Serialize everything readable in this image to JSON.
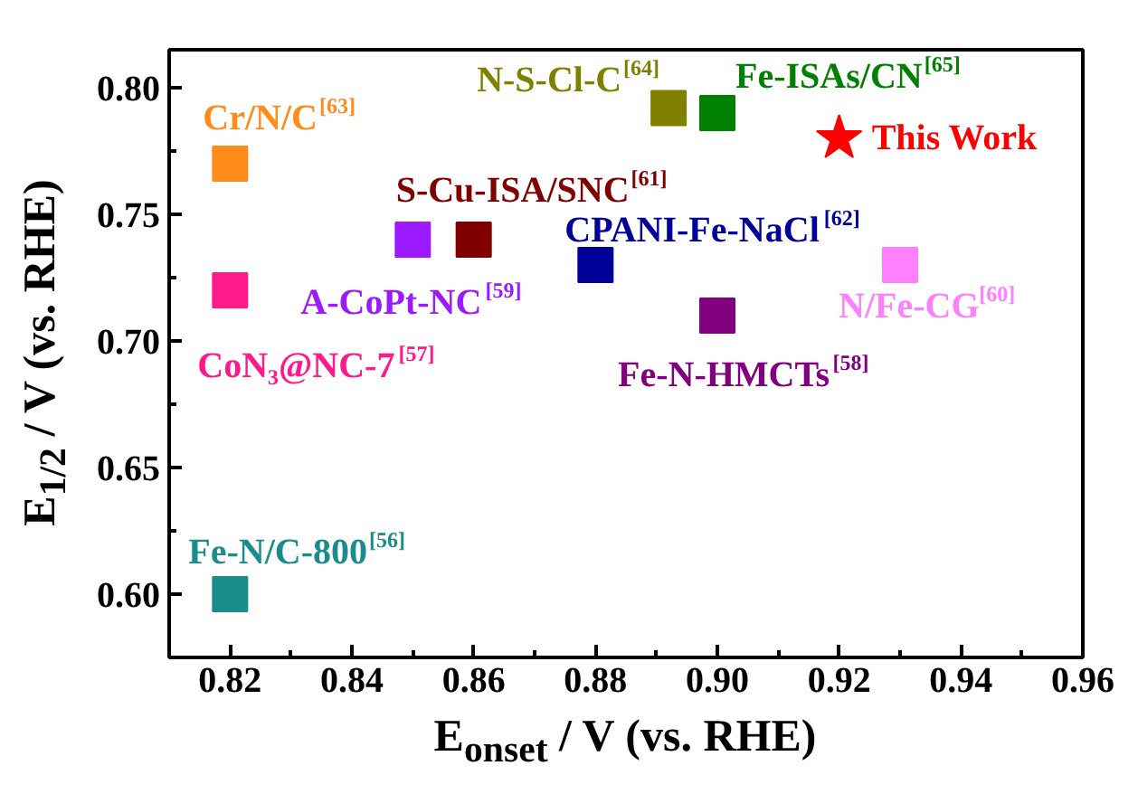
{
  "chart_data": {
    "type": "scatter",
    "xlabel": "E$_{onset}$ / V (vs. RHE)",
    "ylabel": "E$_{1/2}$ / V (vs. RHE)",
    "xlim": [
      0.81,
      0.96
    ],
    "ylim": [
      0.575,
      0.815
    ],
    "xticks": [
      {
        "value": 0.82,
        "label": "0.82"
      },
      {
        "value": 0.84,
        "label": "0.84"
      },
      {
        "value": 0.86,
        "label": "0.86"
      },
      {
        "value": 0.88,
        "label": "0.88"
      },
      {
        "value": 0.9,
        "label": "0.90"
      },
      {
        "value": 0.92,
        "label": "0.92"
      },
      {
        "value": 0.94,
        "label": "0.94"
      },
      {
        "value": 0.96,
        "label": "0.96"
      }
    ],
    "yticks": [
      {
        "value": 0.6,
        "label": "0.60"
      },
      {
        "value": 0.65,
        "label": "0.65"
      },
      {
        "value": 0.7,
        "label": "0.70"
      },
      {
        "value": 0.75,
        "label": "0.75"
      },
      {
        "value": 0.8,
        "label": "0.80"
      }
    ],
    "grid": false,
    "marker": "square",
    "series": [
      {
        "name": "Cr/N/C$^{[63]}$",
        "color": "#ff8c1a",
        "x": [
          0.82
        ],
        "values": [
          0.77
        ]
      },
      {
        "name": "CoN₃@NC-7$^{[57]}$",
        "color": "#ff1a8c",
        "x": [
          0.82
        ],
        "values": [
          0.72
        ]
      },
      {
        "name": "Fe-N/C-800$^{[56]}$",
        "color": "#1a8c8c",
        "x": [
          0.82
        ],
        "values": [
          0.6
        ]
      },
      {
        "name": "A-CoPt-NC$^{[59]}$",
        "color": "#9b1aff",
        "x": [
          0.85
        ],
        "values": [
          0.74
        ]
      },
      {
        "name": "S-Cu-ISA/SNC$^{[61]}$",
        "color": "#800000",
        "x": [
          0.86
        ],
        "values": [
          0.74
        ]
      },
      {
        "name": "CPANI-Fe-NaCl$^{[62]}$",
        "color": "#000099",
        "x": [
          0.88
        ],
        "values": [
          0.73
        ]
      },
      {
        "name": "N-S-Cl-C$^{[64]}$",
        "color": "#808000",
        "x": [
          0.892
        ],
        "values": [
          0.792
        ]
      },
      {
        "name": "Fe-ISAs/CN$^{[65]}$",
        "color": "#008000",
        "x": [
          0.9
        ],
        "values": [
          0.79
        ]
      },
      {
        "name": "This Work",
        "color": "#ff0000",
        "x": [
          0.92
        ],
        "values": [
          0.78
        ],
        "marker": "star"
      },
      {
        "name": "N/Fe-CG$^{[60]}$",
        "color": "#ff80ff",
        "x": [
          0.93
        ],
        "values": [
          0.73
        ]
      },
      {
        "name": "Fe-N-HMCTs$^{[58]}$",
        "color": "#800080",
        "x": [
          0.9
        ],
        "values": [
          0.71
        ]
      }
    ]
  }
}
